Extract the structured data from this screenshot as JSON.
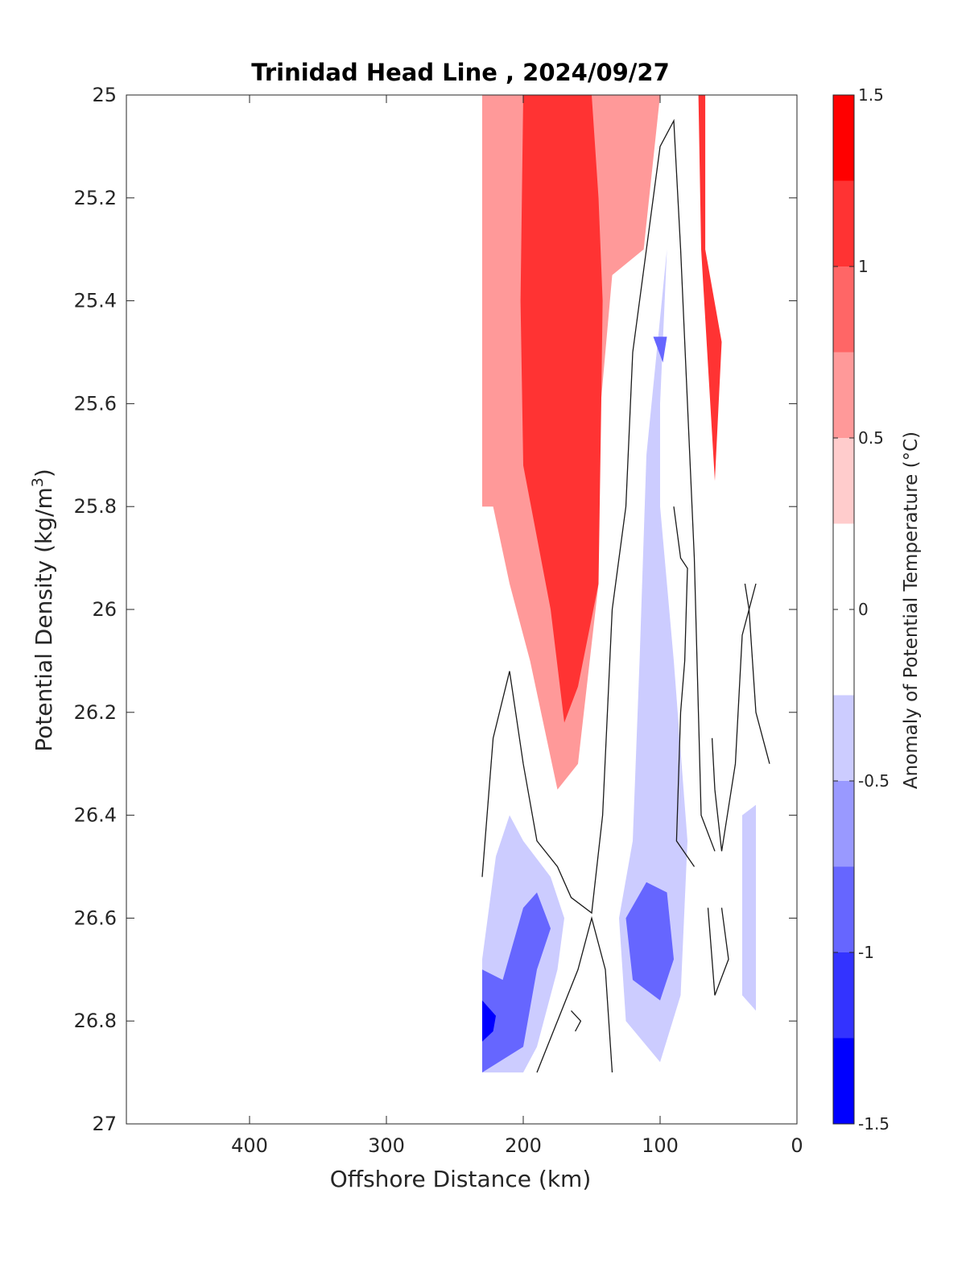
{
  "chart_data": {
    "type": "contour",
    "title": "Trinidad Head Line , 2024/09/27",
    "xlabel": "Offshore Distance (km)",
    "ylabel": "Potential Density (kg/m³)",
    "ylabel_base": "Potential Density (kg/m",
    "ylabel_sup": "3",
    "ylabel_end": ")",
    "xlim": [
      490,
      0
    ],
    "ylim": [
      25,
      27
    ],
    "x_reversed": true,
    "y_reversed": true,
    "x_ticks": [
      400,
      300,
      200,
      100,
      0
    ],
    "y_ticks": [
      "25",
      "25.2",
      "25.4",
      "25.6",
      "25.8",
      "26",
      "26.2",
      "26.4",
      "26.6",
      "26.8",
      "27"
    ],
    "colorbar": {
      "label": "Anomaly of Potential Temperature (°C)",
      "range": [
        -1.5,
        1.5
      ],
      "tick_labels": [
        "1.5",
        "1",
        "0.5",
        "0",
        "-0.5",
        "-1",
        "-1.5"
      ],
      "tick_values": [
        1.5,
        1,
        0.5,
        0,
        -0.5,
        -1,
        -1.5
      ],
      "levels": [
        -1.5,
        -1.25,
        -1,
        -0.75,
        -0.5,
        -0.25,
        0.25,
        0.5,
        0.75,
        1,
        1.25,
        1.5
      ],
      "colors": [
        "#0000ff",
        "#3333ff",
        "#6666ff",
        "#9999ff",
        "#ccccff",
        "#ffffff",
        "#ffcccc",
        "#ff9999",
        "#ff6666",
        "#ff3333",
        "#ff0000"
      ]
    },
    "data_extent": {
      "x": [
        230,
        20
      ],
      "y": [
        25,
        26.9
      ]
    },
    "anomaly_fields": [
      {
        "level": 0.25,
        "polygon": [
          [
            230,
            25
          ],
          [
            67,
            25
          ],
          [
            67,
            25.3
          ],
          [
            55,
            25.48
          ],
          [
            45,
            25.3
          ],
          [
            30,
            25.2
          ],
          [
            20,
            25.3
          ],
          [
            20,
            25.93
          ],
          [
            45,
            25.95
          ],
          [
            40,
            26.3
          ],
          [
            50,
            26.45
          ],
          [
            60,
            26.35
          ],
          [
            75,
            26.1
          ],
          [
            82,
            26.03
          ],
          [
            75,
            25.85
          ],
          [
            100,
            25.7
          ],
          [
            120,
            25.6
          ],
          [
            120,
            25.3
          ],
          [
            100,
            25.1
          ],
          [
            80,
            25.05
          ],
          [
            170,
            26.45
          ],
          [
            200,
            26.45
          ],
          [
            210,
            26.42
          ],
          [
            230,
            26.38
          ]
        ]
      },
      {
        "level": 0.75,
        "polygon": [
          [
            230,
            25
          ],
          [
            100,
            25
          ],
          [
            112,
            25.3
          ],
          [
            135,
            25.35
          ],
          [
            145,
            25.65
          ],
          [
            145,
            25.95
          ],
          [
            160,
            26.3
          ],
          [
            175,
            26.35
          ],
          [
            195,
            26.1
          ],
          [
            210,
            25.95
          ],
          [
            222,
            25.8
          ],
          [
            230,
            25.8
          ]
        ]
      },
      {
        "level": 1.25,
        "polygon": [
          [
            200,
            25
          ],
          [
            150,
            25
          ],
          [
            145,
            25.2
          ],
          [
            142,
            25.4
          ],
          [
            143,
            25.6
          ],
          [
            145,
            25.95
          ],
          [
            160,
            26.15
          ],
          [
            170,
            26.22
          ],
          [
            180,
            26.0
          ],
          [
            200,
            25.72
          ],
          [
            202,
            25.4
          ]
        ]
      },
      {
        "level": 1.25,
        "polygon": [
          [
            72,
            25
          ],
          [
            67,
            25
          ],
          [
            67,
            25.3
          ],
          [
            55,
            25.48
          ],
          [
            60,
            25.75
          ],
          [
            70,
            25.3
          ]
        ]
      },
      {
        "level": -0.25,
        "polygon": [
          [
            230,
            26.68
          ],
          [
            230,
            26.9
          ],
          [
            200,
            26.9
          ],
          [
            190,
            26.85
          ],
          [
            175,
            26.7
          ],
          [
            170,
            26.6
          ],
          [
            180,
            26.52
          ],
          [
            200,
            26.45
          ],
          [
            210,
            26.4
          ],
          [
            220,
            26.48
          ]
        ]
      },
      {
        "level": -0.25,
        "polygon": [
          [
            120,
            26.45
          ],
          [
            130,
            26.6
          ],
          [
            125,
            26.8
          ],
          [
            100,
            26.88
          ],
          [
            85,
            26.75
          ],
          [
            80,
            26.45
          ],
          [
            90,
            26.1
          ],
          [
            100,
            25.8
          ],
          [
            100,
            25.6
          ],
          [
            95,
            25.3
          ],
          [
            110,
            25.7
          ],
          [
            115,
            26.1
          ]
        ]
      },
      {
        "level": -0.25,
        "polygon": [
          [
            40,
            26.4
          ],
          [
            30,
            26.38
          ],
          [
            30,
            26.78
          ],
          [
            40,
            26.75
          ]
        ]
      },
      {
        "level": -0.75,
        "polygon": [
          [
            230,
            26.7
          ],
          [
            230,
            26.9
          ],
          [
            200,
            26.85
          ],
          [
            190,
            26.7
          ],
          [
            180,
            26.62
          ],
          [
            190,
            26.55
          ],
          [
            200,
            26.58
          ],
          [
            215,
            26.72
          ]
        ]
      },
      {
        "level": -0.75,
        "polygon": [
          [
            125,
            26.6
          ],
          [
            120,
            26.72
          ],
          [
            100,
            26.76
          ],
          [
            90,
            26.68
          ],
          [
            95,
            26.55
          ],
          [
            110,
            26.53
          ]
        ]
      },
      {
        "level": -0.75,
        "polygon": [
          [
            105,
            25.47
          ],
          [
            95,
            25.47
          ],
          [
            98,
            25.52
          ]
        ]
      },
      {
        "level": -1.25,
        "polygon": [
          [
            230,
            26.76
          ],
          [
            230,
            26.84
          ],
          [
            222,
            26.82
          ],
          [
            220,
            26.79
          ]
        ]
      }
    ],
    "zero_contours": [
      [
        [
          230,
          26.52
        ],
        [
          222,
          26.25
        ],
        [
          210,
          26.12
        ],
        [
          200,
          26.3
        ],
        [
          190,
          26.45
        ],
        [
          175,
          26.5
        ],
        [
          165,
          26.56
        ],
        [
          150,
          26.59
        ],
        [
          142,
          26.4
        ],
        [
          135,
          26.0
        ],
        [
          125,
          25.8
        ],
        [
          120,
          25.5
        ],
        [
          110,
          25.3
        ],
        [
          100,
          25.1
        ],
        [
          90,
          25.05
        ],
        [
          85,
          25.3
        ],
        [
          80,
          25.6
        ],
        [
          75,
          25.9
        ],
        [
          72,
          26.2
        ],
        [
          70,
          26.4
        ],
        [
          60,
          26.47
        ]
      ],
      [
        [
          90,
          25.8
        ],
        [
          85,
          25.9
        ],
        [
          80,
          25.92
        ],
        [
          82,
          26.1
        ],
        [
          85,
          26.2
        ],
        [
          88,
          26.45
        ],
        [
          75,
          26.5
        ]
      ],
      [
        [
          30,
          25.95
        ],
        [
          40,
          26.05
        ],
        [
          45,
          26.3
        ],
        [
          55,
          26.47
        ],
        [
          60,
          26.35
        ],
        [
          62,
          26.25
        ]
      ],
      [
        [
          20,
          26.3
        ],
        [
          30,
          26.2
        ],
        [
          35,
          26.0
        ],
        [
          38,
          25.95
        ]
      ],
      [
        [
          190,
          26.9
        ],
        [
          175,
          26.8
        ],
        [
          160,
          26.7
        ],
        [
          150,
          26.6
        ],
        [
          140,
          26.7
        ],
        [
          135,
          26.9
        ]
      ],
      [
        [
          65,
          26.58
        ],
        [
          60,
          26.75
        ],
        [
          50,
          26.68
        ],
        [
          55,
          26.58
        ]
      ],
      [
        [
          165,
          26.78
        ],
        [
          158,
          26.8
        ],
        [
          162,
          26.82
        ]
      ]
    ]
  }
}
